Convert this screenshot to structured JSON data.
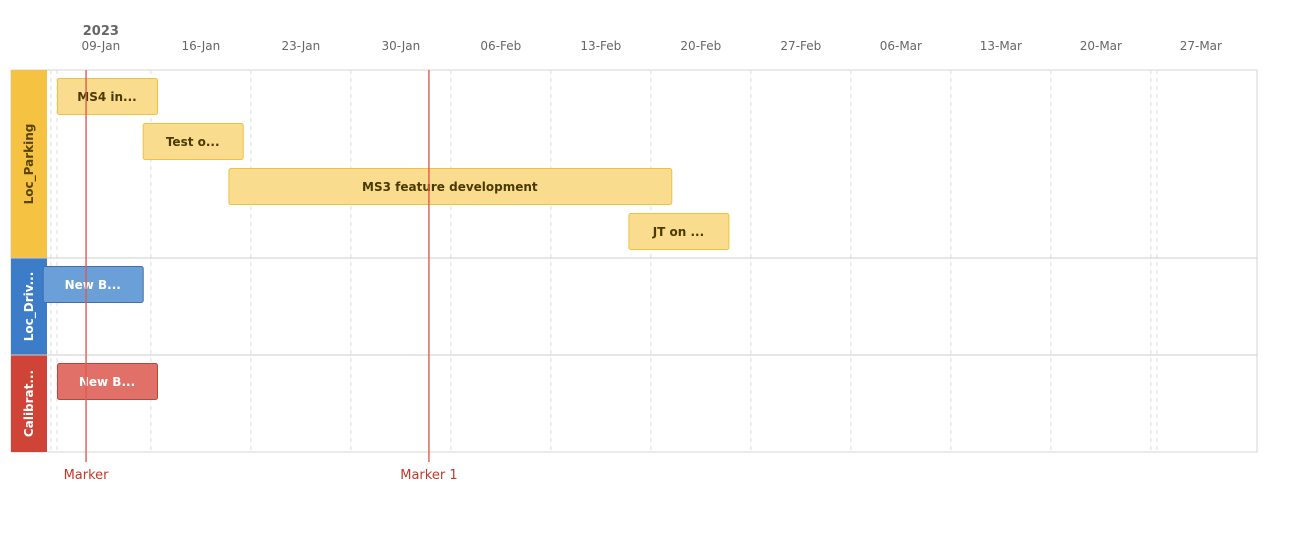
{
  "chart_data": {
    "type": "gantt",
    "year": "2023",
    "x_range": [
      "2023-01-05",
      "2023-03-31"
    ],
    "ticks": [
      {
        "date": "2023-01-09",
        "label": "09-Jan"
      },
      {
        "date": "2023-01-16",
        "label": "16-Jan"
      },
      {
        "date": "2023-01-23",
        "label": "23-Jan"
      },
      {
        "date": "2023-01-30",
        "label": "30-Jan"
      },
      {
        "date": "2023-02-06",
        "label": "06-Feb"
      },
      {
        "date": "2023-02-13",
        "label": "13-Feb"
      },
      {
        "date": "2023-02-20",
        "label": "20-Feb"
      },
      {
        "date": "2023-02-27",
        "label": "27-Feb"
      },
      {
        "date": "2023-03-06",
        "label": "06-Mar"
      },
      {
        "date": "2023-03-13",
        "label": "13-Mar"
      },
      {
        "date": "2023-03-20",
        "label": "20-Mar"
      },
      {
        "date": "2023-03-27",
        "label": "27-Mar"
      }
    ],
    "lanes": [
      {
        "name": "Loc_Parking",
        "color": "#f5c242",
        "label_color": "#5a4400",
        "task_fill": "#fadc8e",
        "task_border": "#f0c040",
        "task_text": "#4a3a00",
        "tasks": [
          {
            "label": "MS4 in...",
            "start": "2023-01-06",
            "end": "2023-01-13"
          },
          {
            "label": "Test o...",
            "start": "2023-01-12",
            "end": "2023-01-19"
          },
          {
            "label": "MS3 feature development",
            "start": "2023-01-18",
            "end": "2023-02-18"
          },
          {
            "label": "JT on ...",
            "start": "2023-02-15",
            "end": "2023-02-22"
          }
        ]
      },
      {
        "name": "Loc_Driv...",
        "color": "#3d7cc9",
        "label_color": "#ffffff",
        "task_fill": "#6a9fd8",
        "task_border": "#3d6fb0",
        "task_text": "#ffffff",
        "tasks": [
          {
            "label": "New B...",
            "start": "2023-01-05",
            "end": "2023-01-12"
          }
        ]
      },
      {
        "name": "Calibrat...",
        "color": "#d04437",
        "label_color": "#ffffff",
        "task_fill": "#e07068",
        "task_border": "#b8453c",
        "task_text": "#ffffff",
        "tasks": [
          {
            "label": "New B...",
            "start": "2023-01-06",
            "end": "2023-01-13"
          }
        ]
      }
    ],
    "markers": [
      {
        "label": "Marker",
        "date": "2023-01-08"
      },
      {
        "label": "Marker 1",
        "date": "2023-02-01"
      }
    ],
    "grid": true
  }
}
